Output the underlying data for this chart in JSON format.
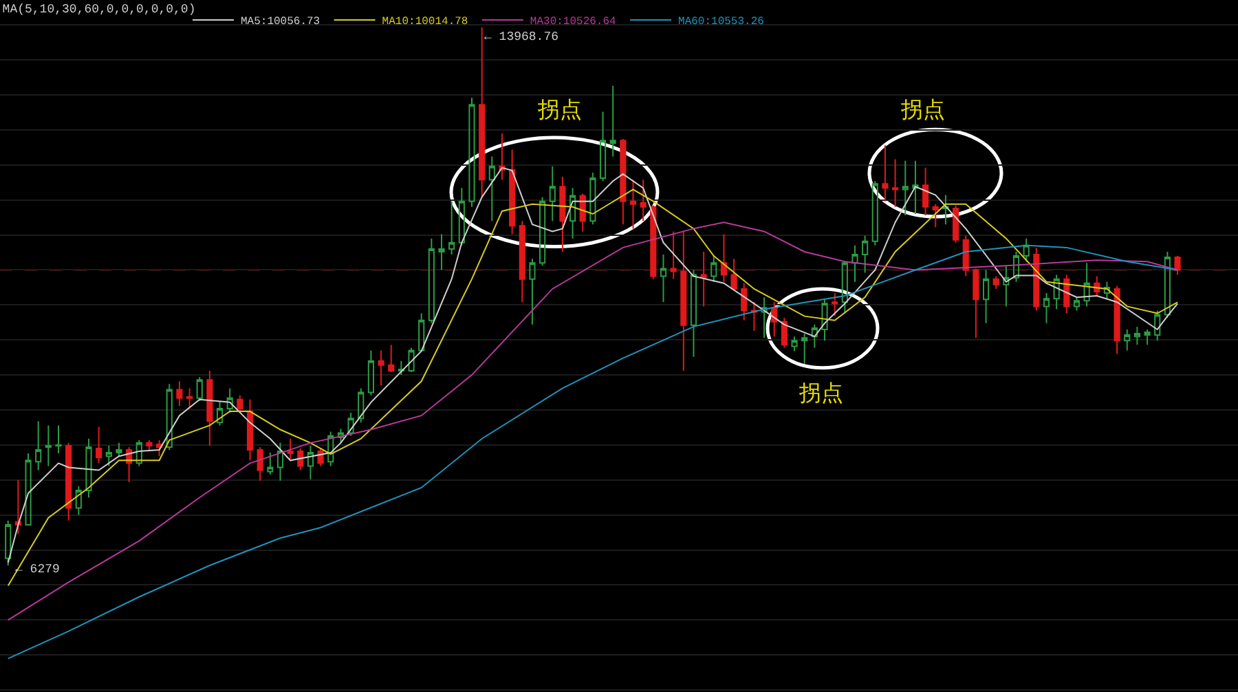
{
  "chart_data": {
    "type": "candlestick",
    "title": "MA(5,10,30,60,0,0,0,0,0,0)",
    "categories": [
      null,
      null,
      null,
      null,
      null,
      null,
      null,
      null,
      null,
      null,
      null,
      null,
      null,
      null,
      null,
      null,
      null,
      null,
      null,
      null,
      null,
      null,
      null,
      null,
      null,
      null,
      null,
      null,
      null,
      null,
      null,
      null,
      null,
      null,
      null,
      null,
      null,
      null,
      null,
      null,
      null,
      null,
      null,
      null,
      null,
      null,
      null,
      null,
      null,
      null,
      null,
      null,
      null,
      null,
      null,
      null,
      null,
      null,
      null,
      null,
      null,
      null,
      null,
      null,
      null,
      null,
      null,
      null,
      null,
      null,
      null,
      null,
      null,
      null,
      null,
      null,
      null,
      null,
      null,
      null,
      null,
      null,
      null,
      null,
      null,
      null,
      null,
      null,
      null,
      null,
      null,
      null,
      null,
      null,
      null,
      null,
      null,
      null,
      null,
      null,
      null,
      null,
      null,
      null,
      null,
      null,
      null,
      null,
      null,
      null,
      null,
      null,
      null,
      null,
      null,
      null,
      null
    ],
    "ohlc": [
      [
        6380,
        6920,
        6279,
        6860
      ],
      [
        6900,
        7500,
        6730,
        6860
      ],
      [
        6860,
        7880,
        6860,
        7780
      ],
      [
        7760,
        8340,
        7640,
        7930
      ],
      [
        7970,
        8280,
        7700,
        7990
      ],
      [
        7990,
        8280,
        7880,
        8000
      ],
      [
        7990,
        8030,
        6920,
        7100
      ],
      [
        7100,
        7410,
        7000,
        7350
      ],
      [
        7350,
        8090,
        7250,
        7970
      ],
      [
        7950,
        8260,
        7740,
        7820
      ],
      [
        7840,
        7990,
        7700,
        7890
      ],
      [
        7890,
        8030,
        7840,
        7930
      ],
      [
        7930,
        7970,
        7470,
        7740
      ],
      [
        7740,
        8070,
        7700,
        8030
      ],
      [
        8030,
        8070,
        7930,
        7990
      ],
      [
        8010,
        8070,
        7840,
        7970
      ],
      [
        7970,
        8870,
        7930,
        8790
      ],
      [
        8790,
        8910,
        8560,
        8670
      ],
      [
        8690,
        8810,
        8520,
        8670
      ],
      [
        8670,
        8970,
        8630,
        8930
      ],
      [
        8930,
        9060,
        7990,
        8340
      ],
      [
        8320,
        8620,
        8280,
        8520
      ],
      [
        8520,
        8810,
        8460,
        8670
      ],
      [
        8650,
        8710,
        8480,
        8520
      ],
      [
        8480,
        8650,
        7780,
        7930
      ],
      [
        7930,
        7970,
        7490,
        7640
      ],
      [
        7620,
        7890,
        7580,
        7680
      ],
      [
        7680,
        8030,
        7490,
        7910
      ],
      [
        7910,
        8090,
        7800,
        7880
      ],
      [
        7910,
        7950,
        7640,
        7700
      ],
      [
        7700,
        7990,
        7510,
        7890
      ],
      [
        7910,
        7950,
        7700,
        7740
      ],
      [
        7760,
        8190,
        7700,
        8130
      ],
      [
        8110,
        8230,
        8030,
        8170
      ],
      [
        8170,
        8460,
        8130,
        8380
      ],
      [
        8380,
        8810,
        8320,
        8750
      ],
      [
        8750,
        9350,
        8710,
        9200
      ],
      [
        9200,
        9350,
        8850,
        9140
      ],
      [
        9140,
        9430,
        9040,
        9060
      ],
      [
        9060,
        9200,
        9000,
        9080
      ],
      [
        9060,
        9390,
        9040,
        9350
      ],
      [
        9350,
        9880,
        9340,
        9780
      ],
      [
        9780,
        10950,
        9740,
        10800
      ],
      [
        10760,
        11010,
        10500,
        10800
      ],
      [
        10800,
        11480,
        10720,
        10890
      ],
      [
        10890,
        11670,
        10850,
        11480
      ],
      [
        11480,
        12960,
        11400,
        12860
      ],
      [
        12860,
        13968.76,
        11540,
        11790
      ],
      [
        11790,
        12120,
        11200,
        11980
      ],
      [
        11980,
        12450,
        11790,
        11930
      ],
      [
        11930,
        12220,
        11010,
        11130
      ],
      [
        11130,
        11200,
        10040,
        10370
      ],
      [
        10370,
        10660,
        9720,
        10600
      ],
      [
        10600,
        11540,
        10560,
        11480
      ],
      [
        11480,
        11980,
        11200,
        11690
      ],
      [
        11690,
        11830,
        10760,
        11200
      ],
      [
        11200,
        11670,
        10950,
        11560
      ],
      [
        11560,
        11590,
        11050,
        11200
      ],
      [
        11200,
        11890,
        11150,
        11810
      ],
      [
        11810,
        12760,
        11770,
        12350
      ],
      [
        12310,
        13130,
        12120,
        12350
      ],
      [
        12350,
        12370,
        11150,
        11480
      ],
      [
        11480,
        11790,
        11090,
        11440
      ],
      [
        11460,
        11790,
        11200,
        11400
      ],
      [
        11400,
        11420,
        10370,
        10410
      ],
      [
        10410,
        10720,
        10040,
        10520
      ],
      [
        10520,
        11050,
        10370,
        10480
      ],
      [
        10480,
        11050,
        9060,
        9710
      ],
      [
        9710,
        10500,
        9260,
        10430
      ],
      [
        10430,
        10760,
        9980,
        10390
      ],
      [
        10410,
        10700,
        10330,
        10600
      ],
      [
        10600,
        11010,
        10330,
        10430
      ],
      [
        10430,
        10660,
        10210,
        10230
      ],
      [
        10230,
        10310,
        9780,
        9920
      ],
      [
        9920,
        10040,
        9630,
        9900
      ],
      [
        9900,
        10110,
        9530,
        9960
      ],
      [
        9960,
        10040,
        9550,
        9760
      ],
      [
        9760,
        9820,
        9390,
        9430
      ],
      [
        9410,
        9550,
        9340,
        9490
      ],
      [
        9490,
        9590,
        9160,
        9530
      ],
      [
        9550,
        9720,
        9390,
        9670
      ],
      [
        9650,
        10080,
        9490,
        10020
      ],
      [
        10040,
        10170,
        9840,
        10020
      ],
      [
        10040,
        10620,
        9880,
        10600
      ],
      [
        10600,
        10850,
        10330,
        10720
      ],
      [
        10720,
        10990,
        10460,
        10910
      ],
      [
        10910,
        11770,
        10850,
        11730
      ],
      [
        11730,
        12280,
        11480,
        11670
      ],
      [
        11670,
        12080,
        11400,
        11650
      ],
      [
        11650,
        12060,
        11280,
        11690
      ],
      [
        11670,
        12060,
        11300,
        11710
      ],
      [
        11710,
        11960,
        11280,
        11400
      ],
      [
        11400,
        11440,
        11110,
        11360
      ],
      [
        11380,
        11570,
        11150,
        11400
      ],
      [
        11380,
        11420,
        10890,
        10930
      ],
      [
        10930,
        10990,
        10410,
        10500
      ],
      [
        10500,
        10520,
        9530,
        10080
      ],
      [
        10080,
        10500,
        9740,
        10370
      ],
      [
        10370,
        10410,
        10230,
        10290
      ],
      [
        10290,
        10560,
        9980,
        10390
      ],
      [
        10390,
        10760,
        10330,
        10700
      ],
      [
        10700,
        10950,
        10620,
        10850
      ],
      [
        10720,
        10820,
        9920,
        9980
      ],
      [
        9980,
        10170,
        9740,
        10090
      ],
      [
        10090,
        10430,
        9940,
        10370
      ],
      [
        10370,
        10430,
        9880,
        9980
      ],
      [
        9980,
        10110,
        9920,
        10060
      ],
      [
        10060,
        10600,
        9980,
        10310
      ],
      [
        10310,
        10410,
        10130,
        10190
      ],
      [
        10170,
        10330,
        10090,
        10250
      ],
      [
        10230,
        10270,
        9300,
        9490
      ],
      [
        9490,
        9650,
        9350,
        9570
      ],
      [
        9550,
        9690,
        9430,
        9590
      ],
      [
        9570,
        9650,
        9430,
        9610
      ],
      [
        9570,
        9920,
        9490,
        9860
      ],
      [
        9860,
        10760,
        9820,
        10680
      ],
      [
        10680,
        10700,
        10430,
        10500
      ]
    ],
    "series": [
      {
        "name": "MA5:10056.73",
        "color": "#cfcfcf",
        "type": "line",
        "values": [
          6320,
          6860,
          7310,
          null,
          null,
          7740,
          7680,
          null,
          null,
          7640,
          null,
          7840,
          null,
          7910,
          null,
          7930,
          null,
          8420,
          null,
          8650,
          null,
          null,
          8610,
          null,
          8320,
          null,
          8090,
          null,
          7780,
          null,
          null,
          null,
          7890,
          8030,
          null,
          null,
          8610,
          null,
          null,
          null,
          null,
          9340,
          null,
          null,
          10370,
          10890,
          null,
          11540,
          null,
          11960,
          11920,
          null,
          11150,
          null,
          11050,
          11090,
          11480,
          null,
          11480,
          null,
          11770,
          11870,
          null,
          11670,
          null,
          10890,
          null,
          null,
          10410,
          null,
          null,
          10310,
          null,
          null,
          10020,
          null,
          null,
          9720,
          null,
          null,
          9550,
          9740,
          null,
          10020,
          null,
          null,
          10500,
          null,
          11180,
          null,
          11690,
          null,
          11570,
          null,
          null,
          11090,
          null,
          null,
          null,
          10330,
          10420,
          null,
          10420,
          10310,
          null,
          null,
          10110,
          null,
          10130,
          null,
          10040,
          null,
          null,
          null,
          9650,
          9840,
          10020
        ]
      },
      {
        "name": "MA10:10014.78",
        "color": "#d8cc1c",
        "type": "line",
        "values": [
          5990,
          null,
          null,
          null,
          6960,
          null,
          null,
          null,
          7390,
          null,
          null,
          7780,
          null,
          null,
          null,
          7780,
          8070,
          null,
          null,
          null,
          8280,
          null,
          8480,
          null,
          8480,
          null,
          null,
          8220,
          null,
          null,
          8030,
          null,
          7870,
          null,
          null,
          8090,
          null,
          null,
          null,
          null,
          null,
          8910,
          null,
          null,
          null,
          null,
          10370,
          null,
          null,
          11340,
          null,
          null,
          11440,
          null,
          null,
          null,
          11400,
          null,
          11300,
          null,
          null,
          null,
          11650,
          null,
          11480,
          null,
          null,
          null,
          11090,
          null,
          10700,
          null,
          null,
          null,
          10230,
          null,
          null,
          null,
          null,
          9840,
          null,
          null,
          9780,
          null,
          null,
          10110,
          null,
          null,
          10760,
          null,
          null,
          null,
          null,
          11440,
          null,
          11440,
          null,
          null,
          null,
          10950,
          null,
          null,
          null,
          10330,
          null,
          null,
          null,
          null,
          null,
          10230,
          null,
          9980,
          null,
          null,
          9880,
          null,
          10040
        ]
      },
      {
        "name": "MA30:10526.64",
        "color": "#b8399a",
        "type": "line",
        "values": [
          5500,
          null,
          null,
          null,
          null,
          null,
          6040,
          null,
          null,
          null,
          null,
          null,
          null,
          6630,
          null,
          null,
          null,
          null,
          null,
          7250,
          null,
          null,
          null,
          null,
          7740,
          null,
          null,
          null,
          null,
          null,
          8030,
          null,
          null,
          null,
          null,
          null,
          8220,
          null,
          null,
          null,
          null,
          8420,
          null,
          null,
          null,
          null,
          9000,
          null,
          null,
          null,
          null,
          null,
          null,
          null,
          10230,
          null,
          null,
          null,
          null,
          null,
          null,
          10820,
          null,
          null,
          null,
          null,
          null,
          null,
          11090,
          null,
          null,
          11180,
          null,
          null,
          null,
          11050,
          null,
          null,
          null,
          10760,
          null,
          null,
          null,
          10620,
          null,
          null,
          null,
          null,
          null,
          null,
          10500,
          null,
          null,
          null,
          null,
          null,
          null,
          null,
          null,
          10560,
          null,
          null,
          null,
          null,
          null,
          null,
          null,
          null,
          10640,
          null,
          null,
          null,
          null,
          10620,
          null,
          null,
          10500
        ]
      },
      {
        "name": "MA60:10553.26",
        "color": "#1f93bd",
        "type": "line",
        "values": [
          4950,
          null,
          null,
          null,
          null,
          null,
          5340,
          null,
          null,
          null,
          null,
          null,
          null,
          5830,
          null,
          null,
          null,
          null,
          null,
          null,
          6280,
          null,
          null,
          null,
          null,
          null,
          null,
          6670,
          null,
          null,
          null,
          6820,
          null,
          null,
          null,
          null,
          null,
          null,
          null,
          null,
          null,
          7390,
          null,
          null,
          null,
          null,
          null,
          8090,
          null,
          null,
          null,
          null,
          null,
          null,
          null,
          8810,
          null,
          null,
          null,
          null,
          null,
          9240,
          null,
          null,
          null,
          null,
          null,
          null,
          9690,
          null,
          null,
          null,
          null,
          null,
          null,
          9940,
          null,
          null,
          null,
          null,
          null,
          null,
          null,
          10130,
          null,
          null,
          null,
          null,
          null,
          null,
          10500,
          null,
          null,
          null,
          null,
          10760,
          null,
          null,
          null,
          null,
          null,
          10850,
          null,
          null,
          null,
          10820,
          null,
          null,
          null,
          null,
          null,
          10620,
          null,
          null,
          null,
          null,
          10500
        ]
      }
    ],
    "yticks": [
      {
        "value": 4500,
        "label": null
      },
      {
        "value": 5000,
        "label": null
      },
      {
        "value": 5500,
        "label": null
      },
      {
        "value": 6000,
        "label": null
      },
      {
        "value": 6500,
        "label": null
      },
      {
        "value": 7000,
        "label": null
      },
      {
        "value": 7500,
        "label": null
      },
      {
        "value": 8000,
        "label": null
      },
      {
        "value": 8500,
        "label": null
      },
      {
        "value": 9000,
        "label": null
      },
      {
        "value": 9500,
        "label": null
      },
      {
        "value": 10000,
        "label": null
      },
      {
        "value": 10500,
        "label": null
      },
      {
        "value": 11000,
        "label": null
      },
      {
        "value": 11500,
        "label": null
      },
      {
        "value": 12000,
        "label": null
      },
      {
        "value": 12500,
        "label": null
      },
      {
        "value": 13000,
        "label": null
      },
      {
        "value": 13500,
        "label": null
      },
      {
        "value": 14000,
        "label": null
      }
    ],
    "ref_lines": [
      {
        "axis": "y",
        "value": 10500,
        "color": "#8b1c1c",
        "line_style": "dashed"
      }
    ],
    "annotations": [
      "← 13968.76",
      "← 6279",
      "拐点",
      "拐点",
      "拐点"
    ],
    "grid": "y",
    "legend": "top left",
    "marker": "none",
    "line_style": "solid"
  }
}
